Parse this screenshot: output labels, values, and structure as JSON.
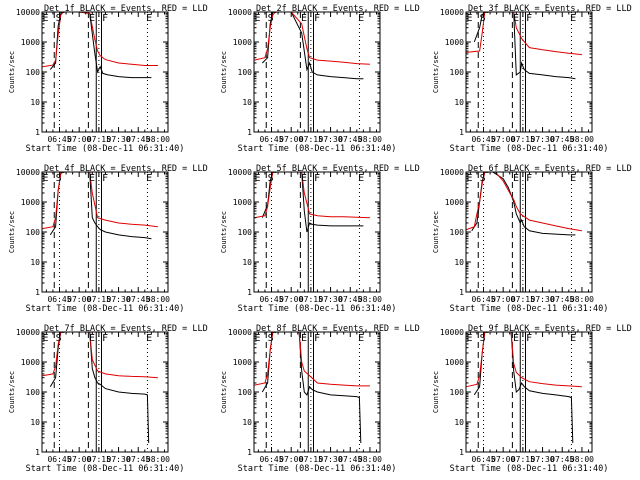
{
  "colors": {
    "events": "#000000",
    "lld": "#e00000",
    "background": "#ffffff"
  },
  "chart_data": [
    {
      "type": "line",
      "title": "Det_1f BLACK = Events, RED = LLD",
      "xlabel": "Start Time (08-Dec-11 06:31:40)",
      "ylabel": "Counts/sec",
      "xticks": [
        "06:45",
        "07:00",
        "07:15",
        "07:30",
        "07:45",
        "08:00"
      ],
      "yticks": [
        "1",
        "10",
        "100",
        "1000",
        "10000"
      ],
      "ylim": [
        1,
        10000
      ],
      "yscale": "log",
      "letters": [
        "E",
        "S",
        "E",
        "F",
        "E"
      ],
      "series": [
        {
          "name": "Events",
          "color": "#000000",
          "x": [
            "06:38",
            "06:42",
            "06:44",
            "06:46",
            "06:48",
            "06:50",
            "07:00",
            "07:08",
            "07:12",
            "07:14",
            "07:16",
            "07:18",
            "07:22",
            "07:30",
            "07:40",
            "07:50",
            "07:55"
          ],
          "y": [
            120,
            200,
            3500,
            9000,
            10000,
            10000,
            10000,
            9000,
            400,
            100,
            150,
            90,
            80,
            70,
            65,
            65,
            65
          ]
        },
        {
          "name": "LLD",
          "color": "#e00000",
          "x": [
            "06:32",
            "06:40",
            "06:42",
            "06:44",
            "06:46",
            "06:48",
            "07:00",
            "07:08",
            "07:12",
            "07:14",
            "07:16",
            "07:20",
            "07:30",
            "07:40",
            "07:50",
            "08:00"
          ],
          "y": [
            150,
            170,
            250,
            1800,
            8000,
            10000,
            10000,
            9000,
            1200,
            500,
            350,
            260,
            200,
            180,
            165,
            165
          ]
        }
      ]
    },
    {
      "type": "line",
      "title": "Det_2f BLACK = Events, RED = LLD",
      "xlabel": "Start Time (08-Dec-11 06:31:40)",
      "ylabel": "Counts/sec",
      "xticks": [
        "06:45",
        "07:00",
        "07:15",
        "07:30",
        "07:45",
        "08:00"
      ],
      "yticks": [
        "1",
        "10",
        "100",
        "1000",
        "10000"
      ],
      "ylim": [
        1,
        10000
      ],
      "yscale": "log",
      "letters": [
        "E",
        "S",
        "E",
        "F",
        "E"
      ],
      "series": [
        {
          "name": "Events",
          "color": "#000000",
          "x": [
            "06:38",
            "06:42",
            "06:44",
            "06:46",
            "06:48",
            "06:50",
            "07:00",
            "07:08",
            "07:12",
            "07:14",
            "07:16",
            "07:20",
            "07:30",
            "07:40",
            "07:50",
            "07:55"
          ],
          "y": [
            200,
            300,
            4000,
            10000,
            10000,
            10000,
            10000,
            2000,
            120,
            200,
            100,
            80,
            70,
            65,
            60,
            60
          ]
        },
        {
          "name": "LLD",
          "color": "#e00000",
          "x": [
            "06:32",
            "06:40",
            "06:42",
            "06:44",
            "06:46",
            "06:48",
            "07:00",
            "07:08",
            "07:12",
            "07:14",
            "07:20",
            "07:30",
            "07:40",
            "07:50",
            "08:00"
          ],
          "y": [
            250,
            300,
            600,
            3000,
            8000,
            10000,
            10000,
            4000,
            600,
            300,
            250,
            230,
            210,
            190,
            180
          ]
        }
      ]
    },
    {
      "type": "line",
      "title": "Det_3f BLACK = Events, RED = LLD",
      "xlabel": "Start Time (08-Dec-11 06:31:40)",
      "ylabel": "Counts/sec",
      "xticks": [
        "06:45",
        "07:00",
        "07:15",
        "07:30",
        "07:45",
        "08:00"
      ],
      "yticks": [
        "1",
        "10",
        "100",
        "1000",
        "10000"
      ],
      "ylim": [
        1,
        10000
      ],
      "yscale": "log",
      "letters": [
        "E",
        "S",
        "E",
        "F",
        "E"
      ],
      "series": [
        {
          "name": "Events",
          "color": "#000000",
          "x": [
            "06:38",
            "06:42",
            "06:44",
            "06:46",
            "06:48",
            "06:50",
            "07:00",
            "07:08",
            "07:10",
            "07:13",
            "07:14",
            "07:16",
            "07:20",
            "07:30",
            "07:40",
            "07:50",
            "07:55"
          ],
          "y": [
            1000,
            3000,
            8000,
            10000,
            10000,
            10000,
            10000,
            10000,
            80,
            100,
            200,
            120,
            90,
            80,
            70,
            65,
            60
          ]
        },
        {
          "name": "LLD",
          "color": "#e00000",
          "x": [
            "06:32",
            "06:42",
            "06:44",
            "06:46",
            "06:48",
            "07:00",
            "07:08",
            "07:10",
            "07:14",
            "07:20",
            "07:30",
            "07:40",
            "07:50",
            "08:00"
          ],
          "y": [
            450,
            500,
            2000,
            10000,
            10000,
            10000,
            10000,
            3000,
            1300,
            650,
            550,
            480,
            420,
            380
          ]
        }
      ]
    },
    {
      "type": "line",
      "title": "Det_4f BLACK = Events, RED = LLD",
      "xlabel": "Start Time (08-Dec-11 06:31:40)",
      "ylabel": "Counts/sec",
      "xticks": [
        "06:45",
        "07:00",
        "07:15",
        "07:30",
        "07:45",
        "08:00"
      ],
      "yticks": [
        "1",
        "10",
        "100",
        "1000",
        "10000"
      ],
      "ylim": [
        1,
        10000
      ],
      "yscale": "log",
      "letters": [
        "E",
        "S",
        "E",
        "F",
        "E"
      ],
      "series": [
        {
          "name": "Events",
          "color": "#000000",
          "x": [
            "06:38",
            "06:42",
            "06:44",
            "06:46",
            "06:48",
            "06:50",
            "07:00",
            "07:08",
            "07:10",
            "07:12",
            "07:14",
            "07:16",
            "07:20",
            "07:30",
            "07:40",
            "07:50",
            "07:55"
          ],
          "y": [
            80,
            150,
            2500,
            9000,
            10000,
            10000,
            10000,
            10000,
            300,
            200,
            150,
            120,
            100,
            80,
            70,
            65,
            60
          ]
        },
        {
          "name": "LLD",
          "color": "#e00000",
          "x": [
            "06:32",
            "06:40",
            "06:42",
            "06:44",
            "06:46",
            "06:48",
            "07:00",
            "07:08",
            "07:10",
            "07:14",
            "07:20",
            "07:30",
            "07:40",
            "07:50",
            "08:00"
          ],
          "y": [
            130,
            150,
            300,
            2500,
            9000,
            10000,
            10000,
            10000,
            2000,
            300,
            250,
            200,
            180,
            170,
            150
          ]
        }
      ]
    },
    {
      "type": "line",
      "title": "Det_5f BLACK = Events, RED = LLD",
      "xlabel": "Start Time (08-Dec-11 06:31:40)",
      "ylabel": "Counts/sec",
      "xticks": [
        "06:45",
        "07:00",
        "07:15",
        "07:30",
        "07:45",
        "08:00"
      ],
      "yticks": [
        "1",
        "10",
        "100",
        "1000",
        "10000"
      ],
      "ylim": [
        1,
        10000
      ],
      "yscale": "log",
      "letters": [
        "E",
        "S",
        "E",
        "F",
        "E"
      ],
      "series": [
        {
          "name": "Events",
          "color": "#000000",
          "x": [
            "06:38",
            "06:42",
            "06:44",
            "06:46",
            "06:48",
            "06:50",
            "07:00",
            "07:08",
            "07:10",
            "07:12",
            "07:14",
            "07:16",
            "07:20",
            "07:30",
            "07:40",
            "07:50",
            "07:55"
          ],
          "y": [
            300,
            800,
            5000,
            10000,
            10000,
            10000,
            10000,
            10000,
            500,
            100,
            200,
            180,
            170,
            160,
            160,
            160,
            160
          ]
        },
        {
          "name": "LLD",
          "color": "#e00000",
          "x": [
            "06:32",
            "06:40",
            "06:42",
            "06:44",
            "06:46",
            "06:48",
            "07:00",
            "07:08",
            "07:10",
            "07:14",
            "07:20",
            "07:30",
            "07:40",
            "07:50",
            "08:00"
          ],
          "y": [
            300,
            350,
            700,
            3000,
            10000,
            10000,
            10000,
            10000,
            2000,
            400,
            350,
            320,
            320,
            310,
            300
          ]
        }
      ]
    },
    {
      "type": "line",
      "title": "Det_6f BLACK = Events, RED = LLD",
      "xlabel": "Start Time (08-Dec-11 06:31:40)",
      "ylabel": "Counts/sec",
      "xticks": [
        "06:45",
        "07:00",
        "07:15",
        "07:30",
        "07:45",
        "08:00"
      ],
      "yticks": [
        "1",
        "10",
        "100",
        "1000",
        "10000"
      ],
      "ylim": [
        1,
        10000
      ],
      "yscale": "log",
      "letters": [
        "E",
        "S",
        "E",
        "F",
        "E"
      ],
      "series": [
        {
          "name": "Events",
          "color": "#000000",
          "x": [
            "06:36",
            "06:40",
            "06:42",
            "06:44",
            "06:46",
            "06:48",
            "06:52",
            "07:00",
            "07:04",
            "07:08",
            "07:10",
            "07:13",
            "07:14",
            "07:16",
            "07:20",
            "07:30",
            "07:40",
            "07:50",
            "07:55"
          ],
          "y": [
            110,
            200,
            1000,
            5000,
            10000,
            10000,
            10000,
            6000,
            3000,
            1000,
            400,
            200,
            250,
            150,
            110,
            90,
            85,
            80,
            80
          ]
        },
        {
          "name": "LLD",
          "color": "#e00000",
          "x": [
            "06:32",
            "06:38",
            "06:40",
            "06:42",
            "06:44",
            "06:46",
            "06:48",
            "06:54",
            "07:00",
            "07:05",
            "07:08",
            "07:10",
            "07:13",
            "07:15",
            "07:20",
            "07:30",
            "07:40",
            "07:50",
            "08:00"
          ],
          "y": [
            120,
            150,
            400,
            1000,
            4000,
            10000,
            10000,
            10000,
            5000,
            2000,
            1200,
            700,
            400,
            350,
            250,
            200,
            160,
            130,
            110
          ]
        }
      ]
    },
    {
      "type": "line",
      "title": "Det_7f BLACK = Events, RED = LLD",
      "xlabel": "Start Time (08-Dec-11 06:31:40)",
      "ylabel": "Counts/sec",
      "xticks": [
        "06:45",
        "07:00",
        "07:15",
        "07:30",
        "07:45",
        "08:00"
      ],
      "yticks": [
        "1",
        "10",
        "100",
        "1000",
        "10000"
      ],
      "ylim": [
        1,
        10000
      ],
      "yscale": "log",
      "letters": [
        "E",
        "S",
        "E",
        "F",
        "E"
      ],
      "series": [
        {
          "name": "Events",
          "color": "#000000",
          "x": [
            "06:38",
            "06:42",
            "06:44",
            "06:46",
            "06:48",
            "06:50",
            "07:00",
            "07:08",
            "07:10",
            "07:12",
            "07:14",
            "07:16",
            "07:20",
            "07:30",
            "07:40",
            "07:50",
            "07:52",
            "07:53"
          ],
          "y": [
            150,
            300,
            3000,
            10000,
            10000,
            10000,
            10000,
            10000,
            600,
            300,
            200,
            180,
            130,
            100,
            90,
            85,
            80,
            2
          ]
        },
        {
          "name": "LLD",
          "color": "#e00000",
          "x": [
            "06:32",
            "06:40",
            "06:42",
            "06:44",
            "06:46",
            "06:48",
            "07:00",
            "07:08",
            "07:10",
            "07:14",
            "07:20",
            "07:30",
            "07:40",
            "07:50",
            "08:00"
          ],
          "y": [
            350,
            400,
            700,
            4000,
            10000,
            10000,
            10000,
            10000,
            1200,
            500,
            400,
            350,
            330,
            320,
            300
          ]
        }
      ]
    },
    {
      "type": "line",
      "title": "Det_8f BLACK = Events, RED = LLD",
      "xlabel": "Start Time (08-Dec-11 06:31:40)",
      "ylabel": "Counts/sec",
      "xticks": [
        "06:45",
        "07:00",
        "07:15",
        "07:30",
        "07:45",
        "08:00"
      ],
      "yticks": [
        "1",
        "10",
        "100",
        "1000",
        "10000"
      ],
      "ylim": [
        1,
        10000
      ],
      "yscale": "log",
      "letters": [
        "E",
        "S",
        "E",
        "F",
        "E"
      ],
      "series": [
        {
          "name": "Events",
          "color": "#000000",
          "x": [
            "06:38",
            "06:42",
            "06:44",
            "06:46",
            "06:48",
            "06:52",
            "07:00",
            "07:06",
            "07:08",
            "07:10",
            "07:12",
            "07:14",
            "07:16",
            "07:20",
            "07:30",
            "07:40",
            "07:50",
            "07:52",
            "07:53"
          ],
          "y": [
            100,
            200,
            2500,
            10000,
            10000,
            10000,
            10000,
            10000,
            500,
            100,
            80,
            150,
            120,
            100,
            80,
            75,
            70,
            65,
            2
          ]
        },
        {
          "name": "LLD",
          "color": "#e00000",
          "x": [
            "06:32",
            "06:40",
            "06:42",
            "06:44",
            "06:46",
            "06:48",
            "07:00",
            "07:06",
            "07:08",
            "07:10",
            "07:14",
            "07:20",
            "07:30",
            "07:40",
            "07:50",
            "08:00"
          ],
          "y": [
            170,
            200,
            400,
            2500,
            10000,
            10000,
            10000,
            10000,
            1000,
            500,
            350,
            200,
            180,
            170,
            160,
            160
          ]
        }
      ]
    },
    {
      "type": "line",
      "title": "Det_9f BLACK = Events, RED = LLD",
      "xlabel": "Start Time (08-Dec-11 06:31:40)",
      "ylabel": "Counts/sec",
      "xticks": [
        "06:45",
        "07:00",
        "07:15",
        "07:30",
        "07:45",
        "08:00"
      ],
      "yticks": [
        "1",
        "10",
        "100",
        "1000",
        "10000"
      ],
      "ylim": [
        1,
        10000
      ],
      "yscale": "log",
      "letters": [
        "E",
        "S",
        "E",
        "F",
        "E"
      ],
      "series": [
        {
          "name": "Events",
          "color": "#000000",
          "x": [
            "06:38",
            "06:42",
            "06:44",
            "06:46",
            "06:48",
            "06:52",
            "07:00",
            "07:06",
            "07:08",
            "07:10",
            "07:12",
            "07:14",
            "07:16",
            "07:20",
            "07:30",
            "07:40",
            "07:50",
            "07:52",
            "07:53"
          ],
          "y": [
            80,
            150,
            2000,
            10000,
            10000,
            10000,
            10000,
            10000,
            500,
            100,
            120,
            200,
            150,
            110,
            90,
            80,
            70,
            65,
            2
          ]
        },
        {
          "name": "LLD",
          "color": "#e00000",
          "x": [
            "06:32",
            "06:40",
            "06:42",
            "06:44",
            "06:46",
            "06:48",
            "07:00",
            "07:06",
            "07:08",
            "07:10",
            "07:14",
            "07:20",
            "07:30",
            "07:40",
            "07:50",
            "08:00"
          ],
          "y": [
            150,
            180,
            350,
            2000,
            10000,
            10000,
            10000,
            10000,
            900,
            450,
            300,
            220,
            190,
            170,
            160,
            150
          ]
        }
      ]
    }
  ]
}
